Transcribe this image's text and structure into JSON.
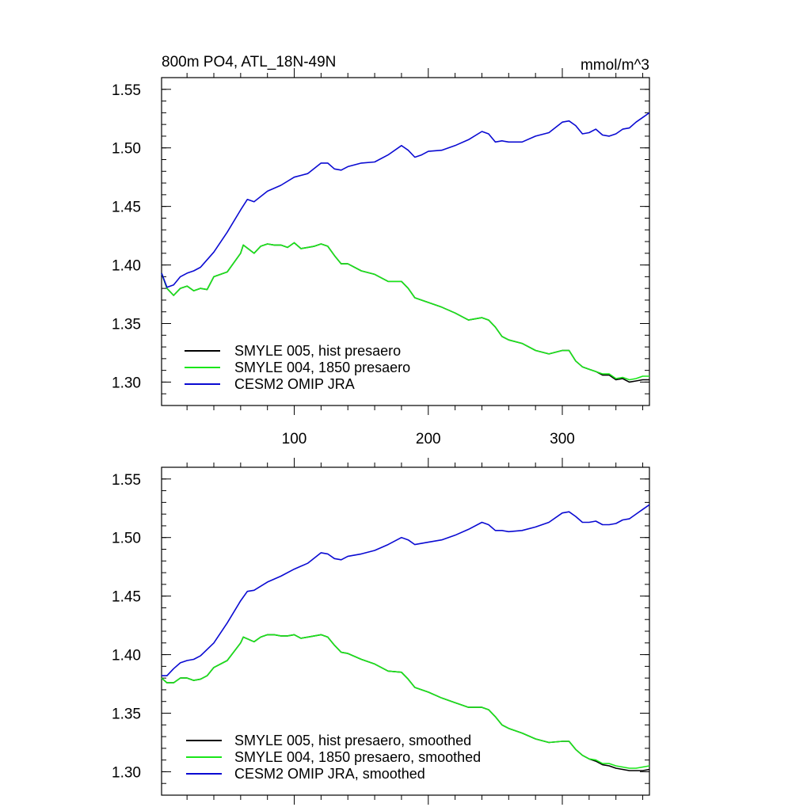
{
  "chart_data": [
    {
      "type": "line",
      "title_left": "800m PO4, ATL_18N-49N",
      "title_right": "mmol/m^3",
      "xlim": [
        1,
        365
      ],
      "ylim": [
        1.28,
        1.56
      ],
      "x_ticks": [
        100,
        200,
        300
      ],
      "x_tick_labels": [
        "100",
        "200",
        "300"
      ],
      "y_ticks": [
        1.3,
        1.35,
        1.4,
        1.45,
        1.5,
        1.55
      ],
      "y_tick_labels": [
        "1.30",
        "1.35",
        "1.40",
        "1.45",
        "1.50",
        "1.55"
      ],
      "grid": false,
      "legend_position": "bottom-left",
      "series": [
        {
          "name": "SMYLE 005, hist presaero",
          "color": "#000000",
          "x": [
            1,
            5,
            10,
            15,
            20,
            25,
            30,
            35,
            40,
            50,
            60,
            62,
            70,
            75,
            80,
            85,
            90,
            95,
            100,
            105,
            110,
            115,
            120,
            125,
            130,
            135,
            140,
            150,
            160,
            170,
            180,
            185,
            190,
            200,
            210,
            220,
            230,
            240,
            245,
            250,
            255,
            260,
            270,
            280,
            290,
            300,
            305,
            310,
            315,
            320,
            325,
            330,
            335,
            340,
            345,
            350,
            355,
            360,
            365
          ],
          "y": [
            1.393,
            1.38,
            1.374,
            1.38,
            1.382,
            1.378,
            1.38,
            1.379,
            1.39,
            1.394,
            1.41,
            1.417,
            1.41,
            1.416,
            1.418,
            1.417,
            1.417,
            1.415,
            1.419,
            1.414,
            1.415,
            1.416,
            1.418,
            1.416,
            1.408,
            1.401,
            1.401,
            1.395,
            1.392,
            1.386,
            1.386,
            1.38,
            1.372,
            1.368,
            1.364,
            1.359,
            1.353,
            1.355,
            1.353,
            1.347,
            1.339,
            1.336,
            1.333,
            1.327,
            1.324,
            1.327,
            1.327,
            1.318,
            1.313,
            1.311,
            1.309,
            1.306,
            1.306,
            1.302,
            1.303,
            1.3,
            1.301,
            1.302,
            1.302
          ]
        },
        {
          "name": "SMYLE 004, 1850 presaero",
          "color": "#19e619",
          "x": [
            1,
            5,
            10,
            15,
            20,
            25,
            30,
            35,
            40,
            50,
            60,
            62,
            70,
            75,
            80,
            85,
            90,
            95,
            100,
            105,
            110,
            115,
            120,
            125,
            130,
            135,
            140,
            150,
            160,
            170,
            180,
            185,
            190,
            200,
            210,
            220,
            230,
            240,
            245,
            250,
            255,
            260,
            270,
            280,
            290,
            300,
            305,
            310,
            315,
            320,
            325,
            330,
            335,
            340,
            345,
            350,
            355,
            360,
            365
          ],
          "y": [
            1.393,
            1.38,
            1.374,
            1.38,
            1.382,
            1.378,
            1.38,
            1.379,
            1.39,
            1.394,
            1.41,
            1.417,
            1.41,
            1.416,
            1.418,
            1.417,
            1.417,
            1.415,
            1.419,
            1.414,
            1.415,
            1.416,
            1.418,
            1.416,
            1.408,
            1.401,
            1.401,
            1.395,
            1.392,
            1.386,
            1.386,
            1.38,
            1.372,
            1.368,
            1.364,
            1.359,
            1.353,
            1.355,
            1.353,
            1.347,
            1.339,
            1.336,
            1.333,
            1.327,
            1.324,
            1.327,
            1.327,
            1.318,
            1.313,
            1.311,
            1.309,
            1.307,
            1.307,
            1.303,
            1.304,
            1.302,
            1.303,
            1.305,
            1.305
          ]
        },
        {
          "name": "CESM2 OMIP JRA",
          "color": "#0a0ad2",
          "x": [
            1,
            5,
            10,
            15,
            20,
            25,
            30,
            40,
            50,
            60,
            65,
            70,
            80,
            90,
            100,
            110,
            120,
            125,
            130,
            135,
            140,
            150,
            160,
            170,
            180,
            185,
            190,
            195,
            200,
            210,
            220,
            230,
            240,
            245,
            250,
            255,
            260,
            270,
            280,
            290,
            300,
            305,
            310,
            315,
            320,
            325,
            330,
            335,
            340,
            345,
            350,
            355,
            360,
            365
          ],
          "y": [
            1.393,
            1.381,
            1.383,
            1.39,
            1.393,
            1.395,
            1.398,
            1.411,
            1.428,
            1.447,
            1.456,
            1.454,
            1.463,
            1.468,
            1.475,
            1.478,
            1.487,
            1.487,
            1.482,
            1.481,
            1.484,
            1.487,
            1.488,
            1.494,
            1.502,
            1.498,
            1.492,
            1.494,
            1.497,
            1.498,
            1.502,
            1.507,
            1.514,
            1.512,
            1.505,
            1.506,
            1.505,
            1.505,
            1.51,
            1.513,
            1.522,
            1.523,
            1.519,
            1.512,
            1.513,
            1.516,
            1.511,
            1.51,
            1.512,
            1.516,
            1.517,
            1.522,
            1.526,
            1.53
          ]
        }
      ]
    },
    {
      "type": "line",
      "xlim": [
        1,
        365
      ],
      "ylim": [
        1.28,
        1.56
      ],
      "x_ticks": [
        100,
        200,
        300
      ],
      "y_ticks": [
        1.3,
        1.35,
        1.4,
        1.45,
        1.5,
        1.55
      ],
      "y_tick_labels": [
        "1.30",
        "1.35",
        "1.40",
        "1.45",
        "1.50",
        "1.55"
      ],
      "grid": false,
      "legend_position": "bottom-left",
      "series": [
        {
          "name": "SMYLE 005, hist presaero, smoothed",
          "color": "#000000",
          "x": [
            1,
            5,
            10,
            15,
            20,
            25,
            30,
            35,
            40,
            50,
            60,
            62,
            70,
            75,
            80,
            85,
            90,
            95,
            100,
            105,
            110,
            115,
            120,
            125,
            130,
            135,
            140,
            150,
            160,
            170,
            180,
            185,
            190,
            200,
            210,
            220,
            230,
            240,
            245,
            250,
            255,
            260,
            270,
            280,
            290,
            300,
            305,
            310,
            315,
            320,
            325,
            330,
            335,
            340,
            345,
            350,
            355,
            360,
            365
          ],
          "y": [
            1.38,
            1.376,
            1.376,
            1.38,
            1.38,
            1.378,
            1.379,
            1.382,
            1.389,
            1.395,
            1.41,
            1.415,
            1.411,
            1.415,
            1.417,
            1.417,
            1.416,
            1.416,
            1.417,
            1.414,
            1.415,
            1.416,
            1.417,
            1.415,
            1.408,
            1.402,
            1.401,
            1.396,
            1.392,
            1.386,
            1.385,
            1.379,
            1.372,
            1.368,
            1.363,
            1.359,
            1.355,
            1.355,
            1.353,
            1.347,
            1.34,
            1.337,
            1.333,
            1.328,
            1.325,
            1.326,
            1.326,
            1.319,
            1.314,
            1.311,
            1.309,
            1.306,
            1.305,
            1.303,
            1.302,
            1.301,
            1.301,
            1.301,
            1.302
          ]
        },
        {
          "name": "SMYLE 004, 1850 presaero, smoothed",
          "color": "#19e619",
          "x": [
            1,
            5,
            10,
            15,
            20,
            25,
            30,
            35,
            40,
            50,
            60,
            62,
            70,
            75,
            80,
            85,
            90,
            95,
            100,
            105,
            110,
            115,
            120,
            125,
            130,
            135,
            140,
            150,
            160,
            170,
            180,
            185,
            190,
            200,
            210,
            220,
            230,
            240,
            245,
            250,
            255,
            260,
            270,
            280,
            290,
            300,
            305,
            310,
            315,
            320,
            325,
            330,
            335,
            340,
            345,
            350,
            355,
            360,
            365
          ],
          "y": [
            1.38,
            1.376,
            1.376,
            1.38,
            1.38,
            1.378,
            1.379,
            1.382,
            1.389,
            1.395,
            1.41,
            1.415,
            1.411,
            1.415,
            1.417,
            1.417,
            1.416,
            1.416,
            1.417,
            1.414,
            1.415,
            1.416,
            1.417,
            1.415,
            1.408,
            1.402,
            1.401,
            1.396,
            1.392,
            1.386,
            1.385,
            1.379,
            1.372,
            1.368,
            1.363,
            1.359,
            1.355,
            1.355,
            1.353,
            1.347,
            1.34,
            1.337,
            1.333,
            1.328,
            1.325,
            1.326,
            1.326,
            1.319,
            1.314,
            1.311,
            1.31,
            1.307,
            1.307,
            1.305,
            1.304,
            1.303,
            1.303,
            1.304,
            1.305
          ]
        },
        {
          "name": "CESM2 OMIP JRA, smoothed",
          "color": "#0a0ad2",
          "x": [
            1,
            5,
            10,
            15,
            20,
            25,
            30,
            40,
            50,
            60,
            65,
            70,
            80,
            90,
            100,
            110,
            120,
            125,
            130,
            135,
            140,
            150,
            160,
            170,
            180,
            185,
            190,
            195,
            200,
            210,
            220,
            230,
            240,
            245,
            250,
            255,
            260,
            270,
            280,
            290,
            300,
            305,
            310,
            315,
            320,
            325,
            330,
            335,
            340,
            345,
            350,
            355,
            360,
            365
          ],
          "y": [
            1.382,
            1.382,
            1.388,
            1.393,
            1.395,
            1.396,
            1.399,
            1.41,
            1.427,
            1.446,
            1.454,
            1.455,
            1.462,
            1.467,
            1.473,
            1.478,
            1.487,
            1.486,
            1.482,
            1.481,
            1.484,
            1.486,
            1.489,
            1.494,
            1.5,
            1.498,
            1.494,
            1.495,
            1.496,
            1.498,
            1.502,
            1.507,
            1.513,
            1.511,
            1.506,
            1.506,
            1.505,
            1.506,
            1.509,
            1.513,
            1.521,
            1.522,
            1.518,
            1.513,
            1.513,
            1.514,
            1.511,
            1.511,
            1.512,
            1.515,
            1.516,
            1.52,
            1.524,
            1.528
          ]
        }
      ]
    }
  ]
}
